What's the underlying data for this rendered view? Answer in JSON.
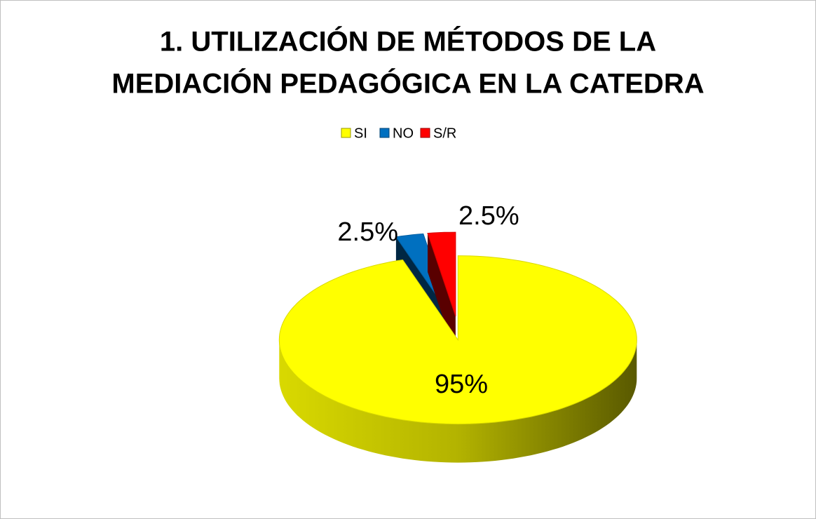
{
  "chart_data": {
    "type": "pie",
    "title": [
      "1.  UTILIZACIÓN DE MÉTODOS DE LA",
      "MEDIACIÓN PEDAGÓGICA EN LA CATEDRA"
    ],
    "categories": [
      "SI",
      "NO",
      "S/R"
    ],
    "values": [
      95,
      2.5,
      2.5
    ],
    "value_labels": [
      "95%",
      "2.5%",
      "2.5%"
    ],
    "colors": [
      "#ffff00",
      "#0070c0",
      "#ff0000"
    ],
    "legend": "top"
  }
}
